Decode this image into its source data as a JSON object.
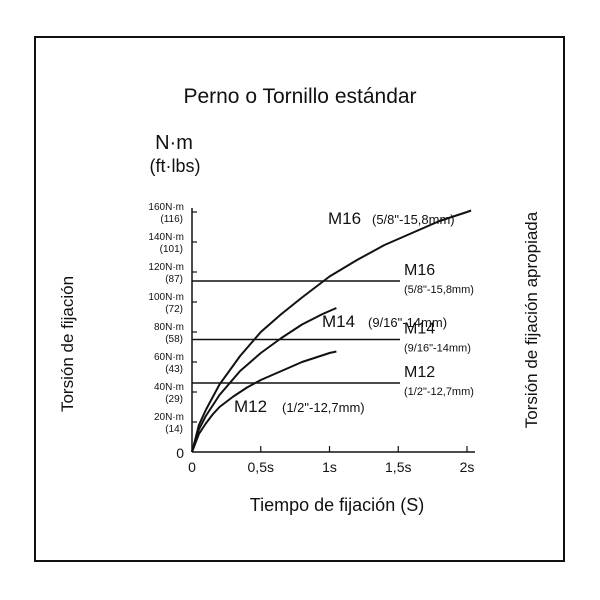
{
  "chart_data": {
    "type": "line",
    "title": "Perno o Tornillo estándar",
    "unit_label": "N·m",
    "unit_label_alt": "(ft·lbs)",
    "ylabel": "Torsión de fijación",
    "ylabel_right": "Torsión de fijación apropiada",
    "xlabel": "Tiempo de fijación (S)",
    "xlim": [
      0,
      2.1
    ],
    "ylim": [
      0,
      160
    ],
    "x_ticks": [
      {
        "value": 0,
        "label": "0"
      },
      {
        "value": 0.5,
        "label": "0,5s"
      },
      {
        "value": 1,
        "label": "1s"
      },
      {
        "value": 1.5,
        "label": "1,5s"
      },
      {
        "value": 2,
        "label": "2s"
      }
    ],
    "y_ticks": [
      {
        "value": 0,
        "label": "0",
        "alt": ""
      },
      {
        "value": 20,
        "label": "20N·m",
        "alt": "(14)"
      },
      {
        "value": 40,
        "label": "40N·m",
        "alt": "(29)"
      },
      {
        "value": 60,
        "label": "60N·m",
        "alt": "(43)"
      },
      {
        "value": 80,
        "label": "80N·m",
        "alt": "(58)"
      },
      {
        "value": 100,
        "label": "100N·m",
        "alt": "(72)"
      },
      {
        "value": 120,
        "label": "120N·m",
        "alt": "(87)"
      },
      {
        "value": 140,
        "label": "140N·m",
        "alt": "(101)"
      },
      {
        "value": 160,
        "label": "160N·m",
        "alt": "(116)"
      }
    ],
    "series": [
      {
        "name": "M16",
        "spec": "(5/8\"-15,8mm)",
        "x": [
          0,
          0.05,
          0.1,
          0.2,
          0.35,
          0.5,
          0.65,
          0.8,
          1.0,
          1.2,
          1.4,
          1.6,
          1.8,
          2.0,
          2.03
        ],
        "y": [
          0,
          18,
          28,
          45,
          64,
          80,
          92,
          103,
          117,
          128,
          138,
          146,
          154,
          160,
          161
        ]
      },
      {
        "name": "M14",
        "spec": "(9/16\"-14mm)",
        "x": [
          0,
          0.05,
          0.1,
          0.2,
          0.35,
          0.5,
          0.65,
          0.8,
          0.95,
          1.05
        ],
        "y": [
          0,
          15,
          24,
          38,
          54,
          66,
          76,
          85,
          92,
          96
        ]
      },
      {
        "name": "M12",
        "spec": "(1/2\"-12,7mm)",
        "x": [
          0,
          0.05,
          0.1,
          0.15,
          0.2,
          0.3,
          0.4,
          0.5,
          0.6,
          0.7,
          0.8,
          0.9,
          1.0,
          1.05
        ],
        "y": [
          0,
          12,
          19,
          25,
          30,
          37,
          43,
          48,
          52,
          56,
          60,
          63,
          66,
          67
        ]
      }
    ],
    "reference_lines": [
      {
        "name": "M16",
        "spec": "(5/8\"-15,8mm)",
        "y": 114
      },
      {
        "name": "M14",
        "spec": "(9/16\"-14mm)",
        "y": 75
      },
      {
        "name": "M12",
        "spec": "(1/2\"-12,7mm)",
        "y": 46
      }
    ],
    "grid": false,
    "legend": "none",
    "line_color": "#111111"
  }
}
